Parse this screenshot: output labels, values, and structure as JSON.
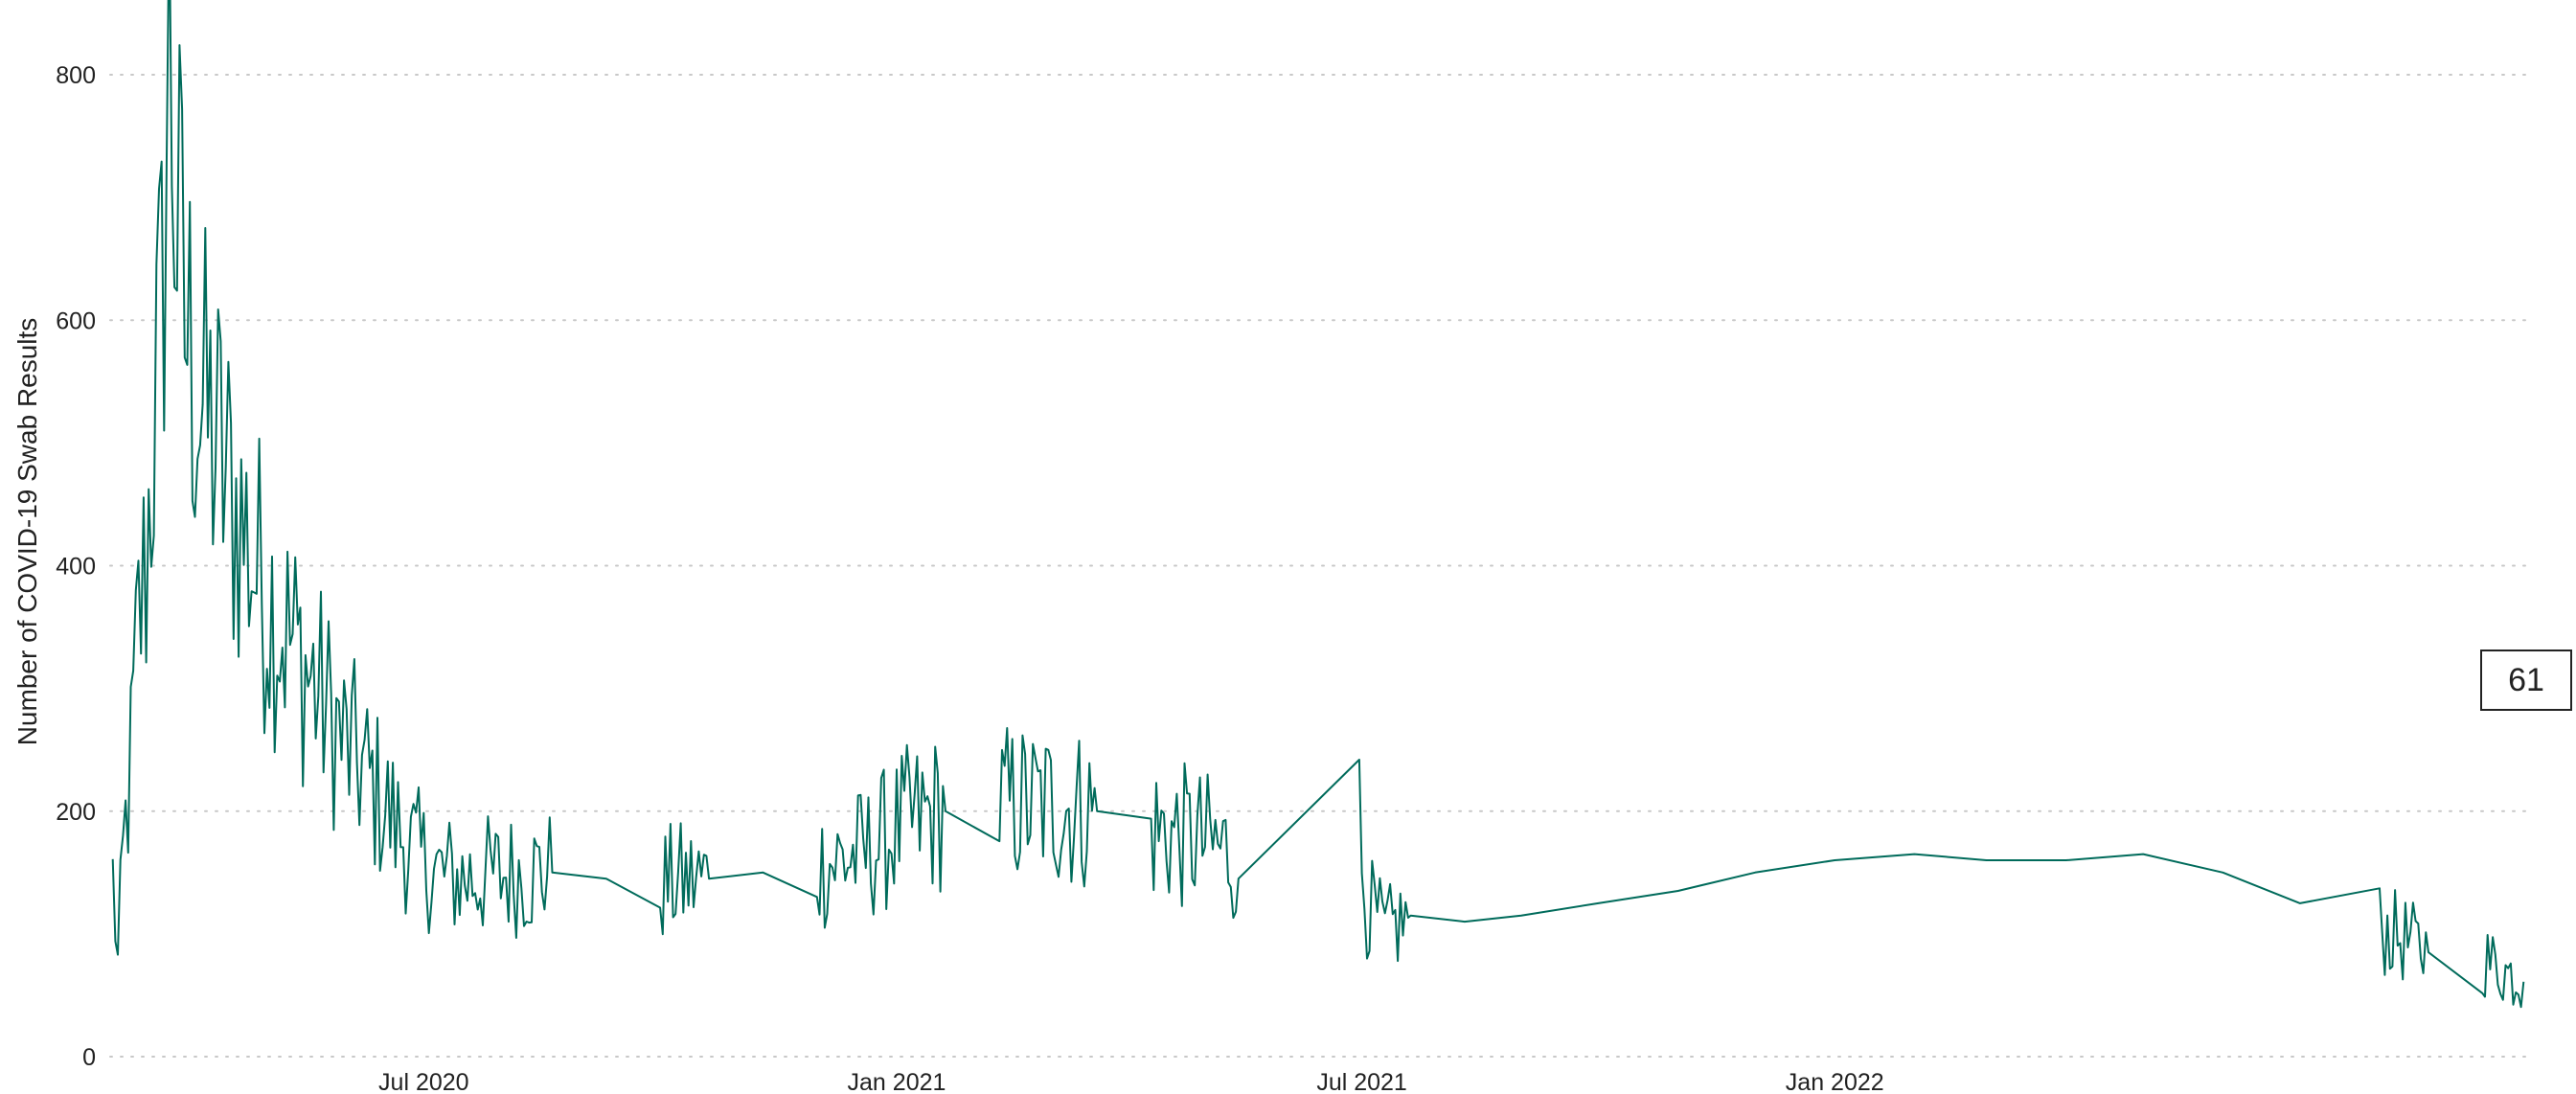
{
  "chart_data": {
    "type": "line",
    "title": "",
    "xlabel": "",
    "ylabel": "Number of COVID-19 Swab Results",
    "ylim": [
      0,
      850
    ],
    "yticks": [
      0,
      200,
      400,
      600,
      800
    ],
    "xlim": [
      "2020-03-01",
      "2022-09-30"
    ],
    "xticks": [
      {
        "date": "2020-07-01",
        "label": "Jul 2020"
      },
      {
        "date": "2021-01-01",
        "label": "Jan 2021"
      },
      {
        "date": "2021-07-01",
        "label": "Jul 2021"
      },
      {
        "date": "2022-01-01",
        "label": "Jan 2022"
      }
    ],
    "grid": "horizontal-dotted",
    "legend": "none",
    "line_color": "#006b5b",
    "latest_value_label": "61",
    "series": [
      {
        "points": [
          [
            "2020-03-02",
            145
          ],
          [
            "2020-03-04",
            75
          ],
          [
            "2020-03-06",
            160
          ],
          [
            "2020-03-09",
            240
          ],
          [
            "2020-03-12",
            350
          ],
          [
            "2020-03-15",
            400
          ],
          [
            "2020-03-18",
            520
          ],
          [
            "2020-03-21",
            600
          ],
          [
            "2020-03-24",
            820
          ],
          [
            "2020-03-27",
            680
          ],
          [
            "2020-03-30",
            600
          ],
          [
            "2020-04-03",
            560
          ],
          [
            "2020-04-07",
            520
          ],
          [
            "2020-04-11",
            500
          ],
          [
            "2020-04-15",
            470
          ],
          [
            "2020-04-20",
            440
          ],
          [
            "2020-04-25",
            410
          ],
          [
            "2020-04-30",
            380
          ],
          [
            "2020-05-05",
            360
          ],
          [
            "2020-05-10",
            340
          ],
          [
            "2020-05-15",
            320
          ],
          [
            "2020-05-20",
            300
          ],
          [
            "2020-05-25",
            280
          ],
          [
            "2020-05-31",
            255
          ],
          [
            "2020-06-07",
            235
          ],
          [
            "2020-06-14",
            210
          ],
          [
            "2020-06-21",
            185
          ],
          [
            "2020-06-28",
            165
          ],
          [
            "2020-07-05",
            150
          ],
          [
            "2020-07-15",
            145
          ],
          [
            "2020-08-01",
            148
          ],
          [
            "2020-08-20",
            150
          ],
          [
            "2020-09-10",
            145
          ],
          [
            "2020-10-01",
            140
          ],
          [
            "2020-10-20",
            145
          ],
          [
            "2020-11-10",
            150
          ],
          [
            "2020-12-01",
            155
          ],
          [
            "2020-12-20",
            165
          ],
          [
            "2021-01-05",
            190
          ],
          [
            "2021-01-20",
            200
          ],
          [
            "2021-02-10",
            205
          ],
          [
            "2021-03-01",
            205
          ],
          [
            "2021-03-20",
            200
          ],
          [
            "2021-04-10",
            185
          ],
          [
            "2021-04-30",
            175
          ],
          [
            "2021-05-12",
            165
          ],
          [
            "2021-05-14",
            145
          ],
          [
            "2021-06-30",
            195
          ],
          [
            "2021-07-01",
            150
          ],
          [
            "2021-07-03",
            125
          ],
          [
            "2021-07-10",
            100
          ],
          [
            "2021-07-20",
            115
          ],
          [
            "2021-08-10",
            110
          ],
          [
            "2021-09-01",
            115
          ],
          [
            "2021-10-01",
            125
          ],
          [
            "2021-11-01",
            135
          ],
          [
            "2021-12-01",
            150
          ],
          [
            "2022-01-01",
            160
          ],
          [
            "2022-02-01",
            165
          ],
          [
            "2022-03-01",
            160
          ],
          [
            "2022-04-01",
            160
          ],
          [
            "2022-05-01",
            165
          ],
          [
            "2022-06-01",
            150
          ],
          [
            "2022-07-01",
            125
          ],
          [
            "2022-08-01",
            105
          ],
          [
            "2022-08-20",
            85
          ],
          [
            "2022-09-10",
            80
          ],
          [
            "2022-09-26",
            61
          ]
        ]
      }
    ]
  }
}
